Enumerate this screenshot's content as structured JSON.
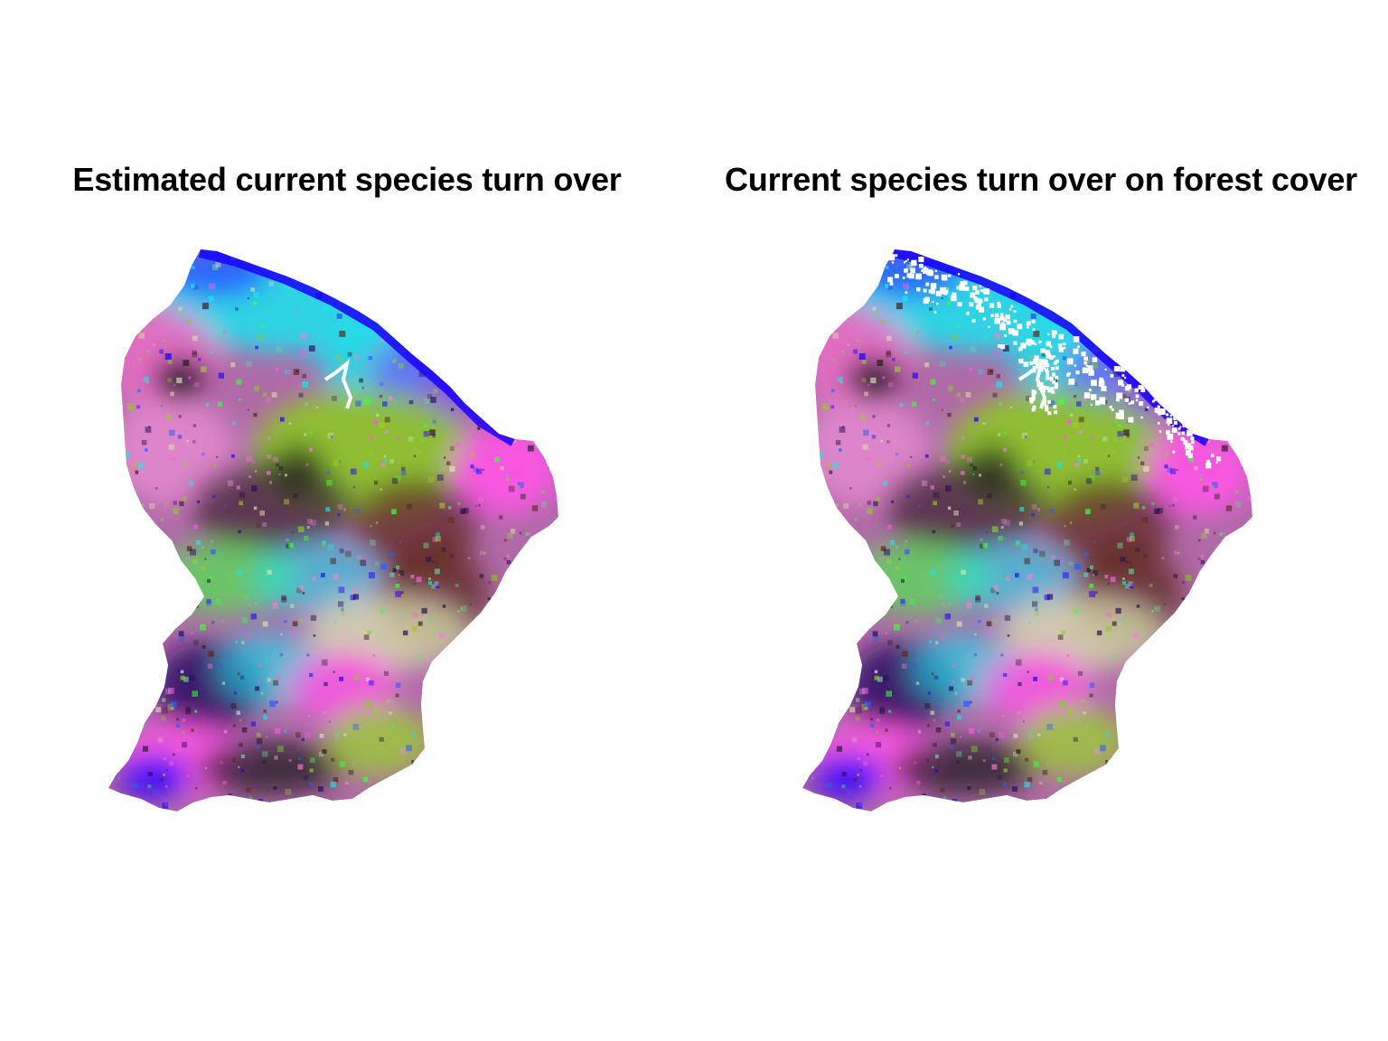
{
  "panels": [
    {
      "id": "left",
      "title": "Estimated current species turn over",
      "masked_by_forest_cover": false
    },
    {
      "id": "right",
      "title": "Current species turn over on forest cover",
      "masked_by_forest_cover": true
    }
  ],
  "colors": {
    "background": "#ffffff",
    "title": "#000000",
    "palette": [
      "#1a00ff",
      "#2b5cff",
      "#19e6ee",
      "#6ecf9a",
      "#88cc22",
      "#9acd32",
      "#ff55e6",
      "#ea6fc7",
      "#e58ad0",
      "#3dff3d",
      "#1b1b1b",
      "#3a2330",
      "#5c2a18",
      "#2a0e63",
      "#d9e6b0",
      "#ffffff"
    ]
  }
}
